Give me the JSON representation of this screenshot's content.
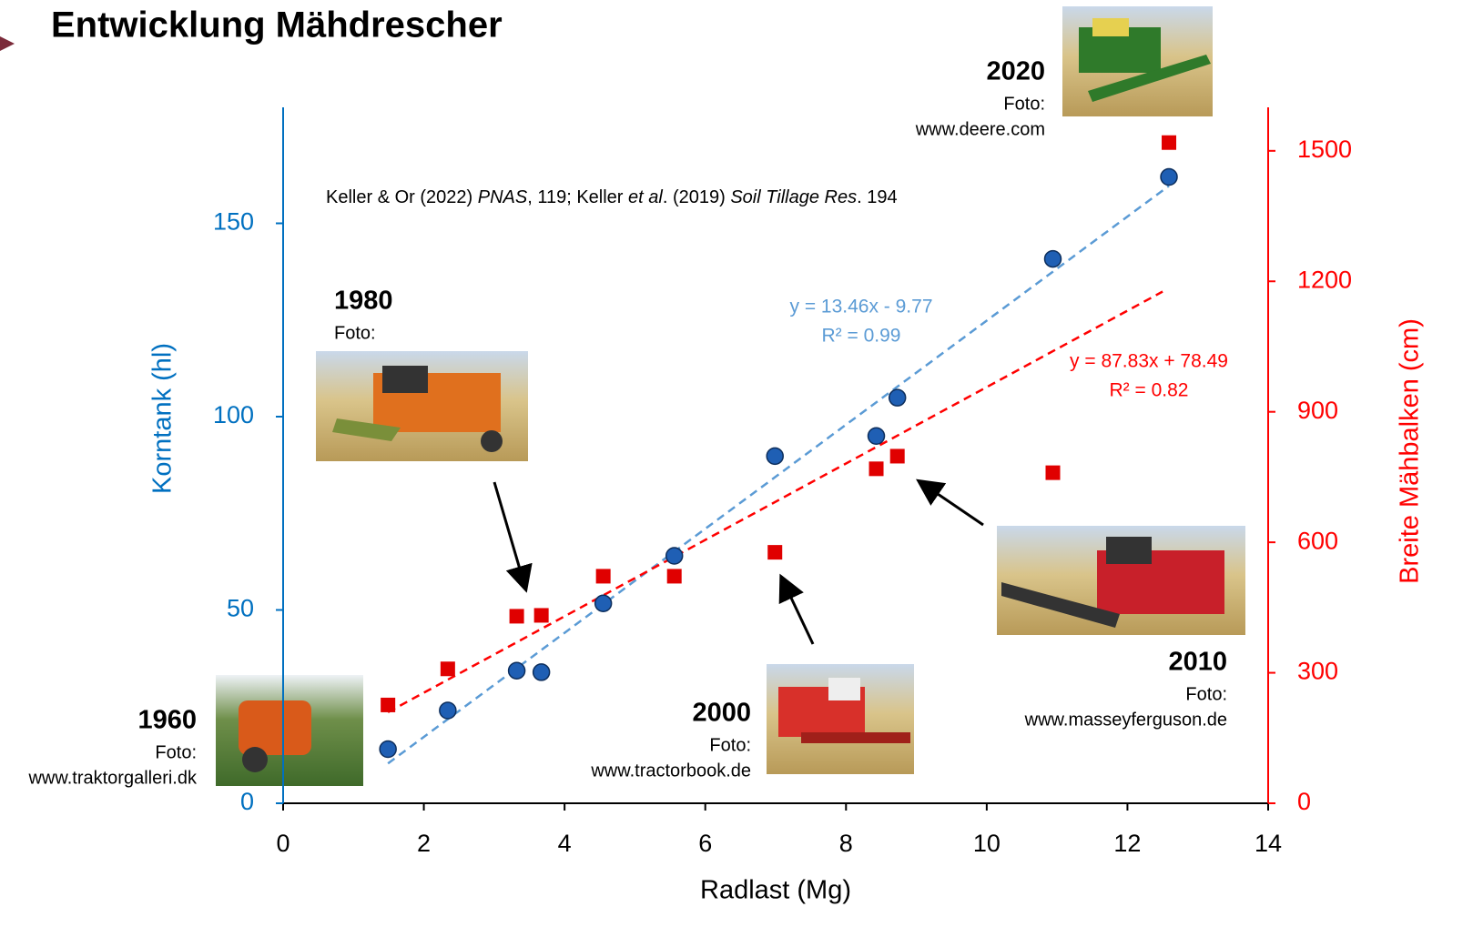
{
  "chart_data": {
    "type": "scatter",
    "title": "Entwicklung Mähdrescher",
    "citation": [
      "Keller & Or (2022) ",
      "PNAS",
      ", 119; Keller ",
      "et al",
      ". (2019) ",
      "Soil Tillage Res",
      ". 194"
    ],
    "xlabel": "Radlast (Mg)",
    "ylabel": "Korntank (hl)",
    "y2label": "Breite Mähbalken (cm)",
    "xlim": [
      0,
      14
    ],
    "xticks": [
      0,
      2,
      4,
      6,
      8,
      10,
      12,
      14
    ],
    "ylim": [
      0,
      180
    ],
    "yticks": [
      0,
      50,
      100,
      150
    ],
    "y2lim": [
      0,
      1600
    ],
    "y2ticks": [
      0,
      300,
      600,
      900,
      1200,
      1500
    ],
    "x": [
      1.49,
      2.34,
      3.32,
      3.67,
      4.55,
      5.56,
      6.99,
      8.43,
      8.73,
      10.94,
      12.59
    ],
    "series": [
      {
        "color": "#1f5fb4",
        "axis": "y",
        "values": [
          14,
          24,
          34.3,
          33.9,
          51.7,
          64,
          89.8,
          95,
          104.9,
          140.8,
          162
        ],
        "trendline": {
          "color": "#5b9bd5",
          "x": [
            1.49,
            12.59
          ],
          "values": [
            10.3,
            159.7
          ],
          "equation": "y = 13.46x - 9.77",
          "r2": "R² = 0.99"
        }
      },
      {
        "color": "#e00000",
        "axis": "y2",
        "values": [
          226,
          309,
          430,
          432,
          522,
          522,
          577,
          769,
          798,
          760,
          1519
        ],
        "trendline": {
          "color": "#ff0000",
          "x": [
            1.49,
            12.5
          ],
          "values": [
            209.4,
            1176.4
          ],
          "equation": "y = 87.83x + 78.49",
          "r2": "R² = 0.82"
        }
      }
    ],
    "photos": [
      {
        "year": "1960",
        "credit": "Foto:",
        "source": "www.traktorgalleri.dk"
      },
      {
        "year": "1980",
        "credit": "Foto:"
      },
      {
        "year": "2000",
        "credit": "Foto:",
        "source": "www.tractorbook.de"
      },
      {
        "year": "2010",
        "credit": "Foto:",
        "source": "www.masseyferguson.de"
      },
      {
        "year": "2020",
        "credit": "Foto:",
        "source": "www.deere.com"
      }
    ]
  }
}
